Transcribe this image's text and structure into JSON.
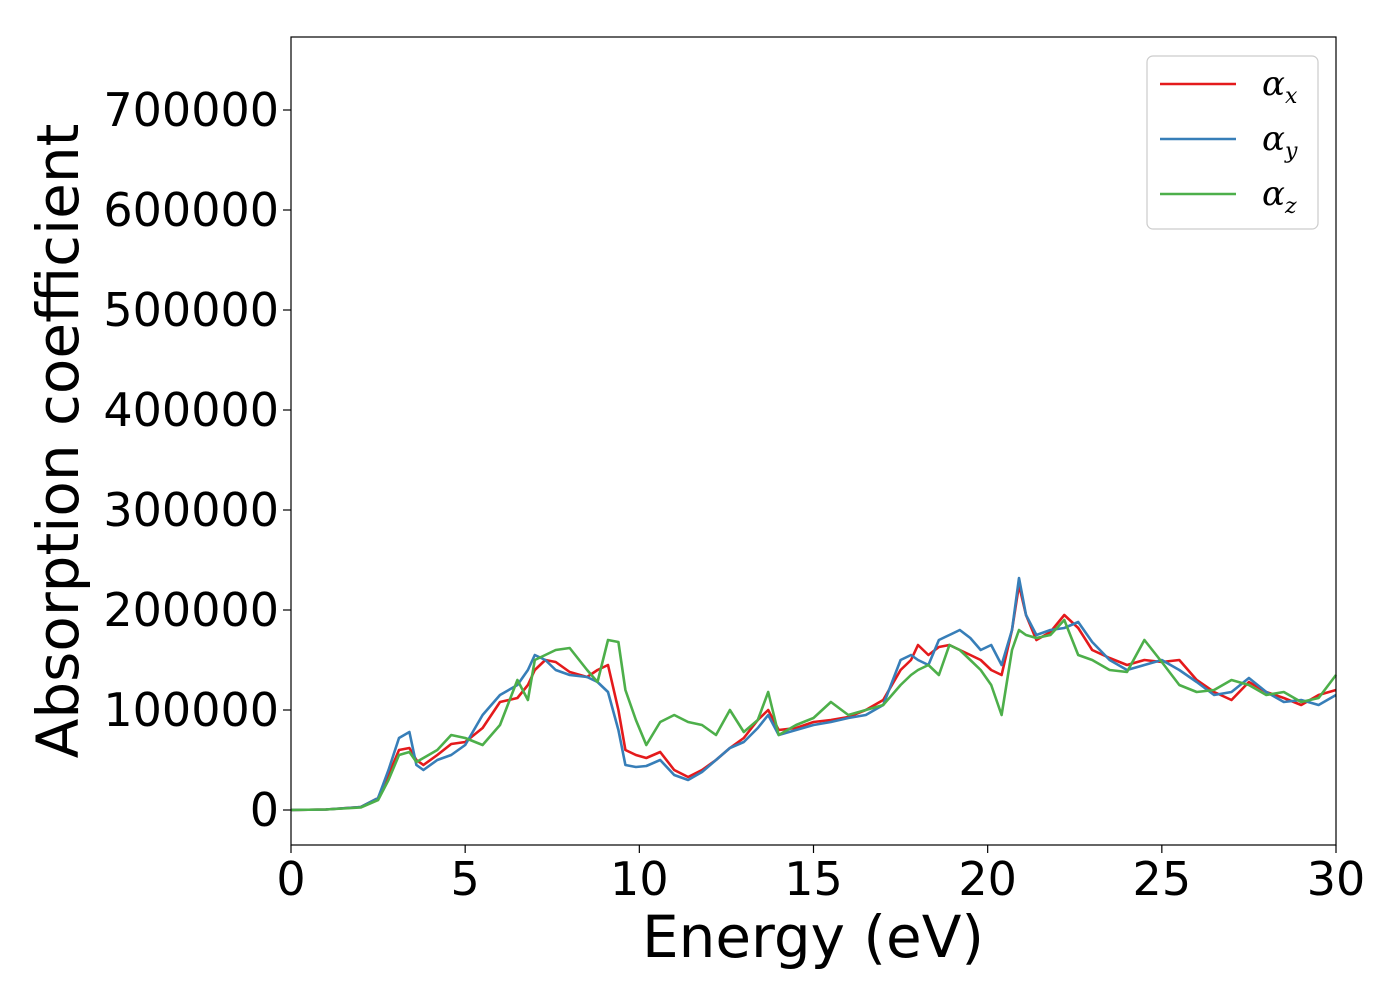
{
  "chart_data": {
    "type": "line",
    "xlabel": "Energy (eV)",
    "ylabel": "Absorption coefficient",
    "xlim": [
      0,
      30
    ],
    "ylim": [
      -35000,
      773000
    ],
    "xticks": [
      0,
      5,
      10,
      15,
      20,
      25,
      30
    ],
    "yticks": [
      0,
      100000,
      200000,
      300000,
      400000,
      500000,
      600000,
      700000
    ],
    "grid": false,
    "legend_position": "top-right",
    "series": [
      {
        "name": "α",
        "subscript": "x",
        "color": "#e41a1c",
        "x": [
          0,
          1,
          2,
          2.5,
          2.8,
          3.1,
          3.4,
          3.6,
          3.8,
          4.2,
          4.6,
          5,
          5.5,
          6,
          6.5,
          6.8,
          7,
          7.3,
          7.6,
          8,
          8.5,
          8.8,
          9.1,
          9.4,
          9.6,
          9.9,
          10.2,
          10.6,
          11,
          11.4,
          11.8,
          12.2,
          12.6,
          13,
          13.4,
          13.7,
          14,
          14.5,
          15,
          15.5,
          16,
          16.5,
          17,
          17.5,
          17.8,
          18,
          18.3,
          18.6,
          18.9,
          19.2,
          19.5,
          19.8,
          20.1,
          20.4,
          20.7,
          20.9,
          21.1,
          21.4,
          21.8,
          22.2,
          22.6,
          23,
          23.5,
          24,
          24.5,
          25,
          25.5,
          26,
          26.5,
          27,
          27.5,
          28,
          28.5,
          29,
          29.5,
          30
        ],
        "y": [
          0,
          500,
          3000,
          12000,
          35000,
          60000,
          62000,
          50000,
          45000,
          55000,
          66000,
          68000,
          82000,
          108000,
          112000,
          125000,
          140000,
          150000,
          148000,
          138000,
          133000,
          140000,
          145000,
          100000,
          60000,
          55000,
          52000,
          58000,
          40000,
          33000,
          40000,
          50000,
          62000,
          72000,
          90000,
          100000,
          80000,
          82000,
          88000,
          90000,
          93000,
          100000,
          110000,
          140000,
          150000,
          165000,
          155000,
          163000,
          165000,
          160000,
          155000,
          150000,
          140000,
          135000,
          180000,
          225000,
          195000,
          170000,
          178000,
          195000,
          182000,
          160000,
          152000,
          145000,
          150000,
          148000,
          150000,
          130000,
          118000,
          110000,
          128000,
          118000,
          112000,
          105000,
          115000,
          120000
        ]
      },
      {
        "name": "α",
        "subscript": "y",
        "color": "#377eb8",
        "x": [
          0,
          1,
          2,
          2.5,
          2.8,
          3.1,
          3.4,
          3.6,
          3.8,
          4.2,
          4.6,
          5,
          5.5,
          6,
          6.5,
          6.8,
          7,
          7.3,
          7.6,
          8,
          8.5,
          8.8,
          9.1,
          9.4,
          9.6,
          9.9,
          10.2,
          10.6,
          11,
          11.4,
          11.8,
          12.2,
          12.6,
          13,
          13.4,
          13.7,
          14,
          14.5,
          15,
          15.5,
          16,
          16.5,
          17,
          17.5,
          17.8,
          18,
          18.3,
          18.6,
          18.9,
          19.2,
          19.5,
          19.8,
          20.1,
          20.4,
          20.7,
          20.9,
          21.1,
          21.4,
          21.8,
          22.2,
          22.6,
          23,
          23.5,
          24,
          24.5,
          25,
          25.5,
          26,
          26.5,
          27,
          27.5,
          28,
          28.5,
          29,
          29.5,
          30
        ],
        "y": [
          0,
          500,
          3000,
          12000,
          40000,
          72000,
          78000,
          45000,
          40000,
          50000,
          55000,
          65000,
          95000,
          115000,
          125000,
          140000,
          155000,
          150000,
          140000,
          135000,
          133000,
          128000,
          118000,
          80000,
          45000,
          43000,
          44000,
          50000,
          35000,
          30000,
          38000,
          50000,
          62000,
          68000,
          82000,
          95000,
          75000,
          80000,
          85000,
          88000,
          92000,
          95000,
          105000,
          150000,
          155000,
          150000,
          145000,
          170000,
          175000,
          180000,
          172000,
          160000,
          165000,
          145000,
          180000,
          232000,
          195000,
          175000,
          180000,
          182000,
          188000,
          168000,
          150000,
          140000,
          145000,
          150000,
          140000,
          128000,
          115000,
          118000,
          132000,
          118000,
          108000,
          110000,
          105000,
          115000
        ]
      },
      {
        "name": "α",
        "subscript": "z",
        "color": "#4daf4a",
        "x": [
          0,
          1,
          2,
          2.5,
          2.8,
          3.1,
          3.4,
          3.6,
          3.8,
          4.2,
          4.6,
          5,
          5.5,
          6,
          6.5,
          6.8,
          7,
          7.3,
          7.6,
          8,
          8.5,
          8.8,
          9.1,
          9.4,
          9.6,
          9.9,
          10.2,
          10.6,
          11,
          11.4,
          11.8,
          12.2,
          12.6,
          13,
          13.4,
          13.7,
          14,
          14.5,
          15,
          15.5,
          16,
          16.5,
          17,
          17.5,
          17.8,
          18,
          18.3,
          18.6,
          18.9,
          19.2,
          19.5,
          19.8,
          20.1,
          20.4,
          20.7,
          20.9,
          21.1,
          21.4,
          21.8,
          22.2,
          22.6,
          23,
          23.5,
          24,
          24.5,
          25,
          25.5,
          26,
          26.5,
          27,
          27.5,
          28,
          28.5,
          29,
          29.5,
          30
        ],
        "y": [
          0,
          500,
          2500,
          10000,
          30000,
          55000,
          58000,
          48000,
          52000,
          60000,
          75000,
          72000,
          65000,
          85000,
          130000,
          110000,
          150000,
          155000,
          160000,
          162000,
          140000,
          128000,
          170000,
          168000,
          120000,
          90000,
          65000,
          88000,
          95000,
          88000,
          85000,
          75000,
          100000,
          78000,
          90000,
          118000,
          75000,
          85000,
          92000,
          108000,
          95000,
          100000,
          105000,
          125000,
          135000,
          140000,
          145000,
          135000,
          165000,
          160000,
          150000,
          140000,
          125000,
          95000,
          160000,
          180000,
          175000,
          172000,
          175000,
          190000,
          155000,
          150000,
          140000,
          138000,
          170000,
          148000,
          125000,
          118000,
          120000,
          130000,
          125000,
          115000,
          118000,
          108000,
          112000,
          135000
        ]
      }
    ]
  }
}
